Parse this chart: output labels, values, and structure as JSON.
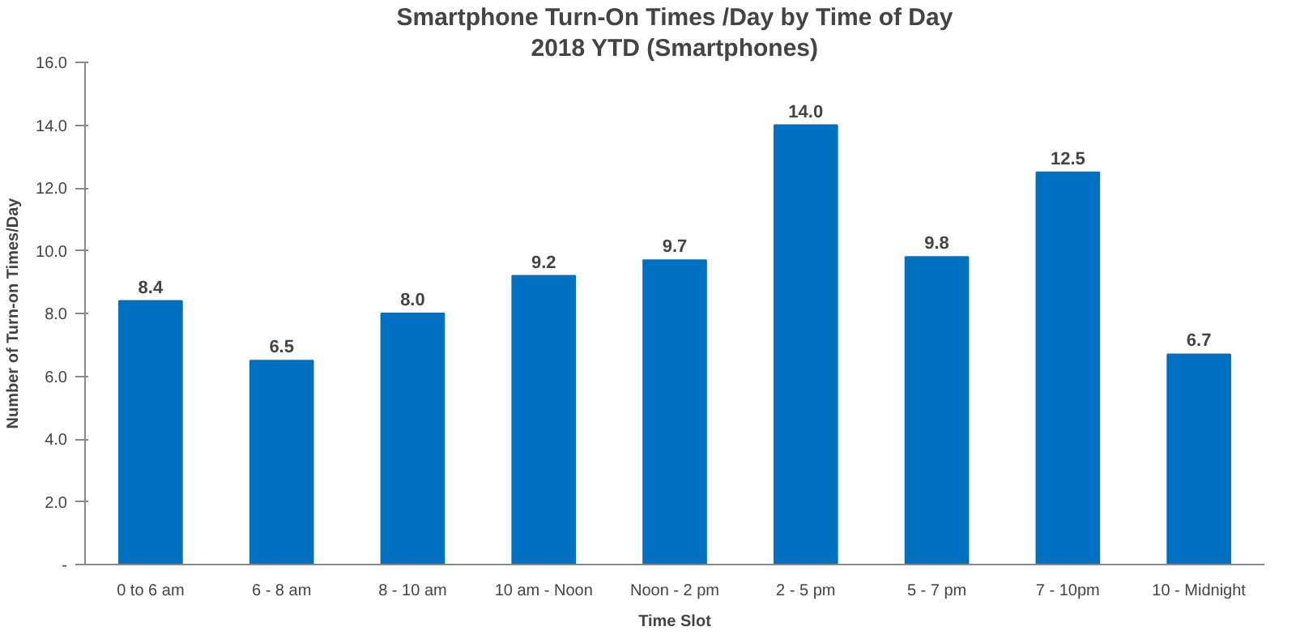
{
  "chart_data": {
    "type": "bar",
    "title": "Smartphone Turn-On Times /Day by Time of Day",
    "subtitle": "2018 YTD (Smartphones)",
    "xlabel": "Time Slot",
    "ylabel": "Number of Turn-on Times/Day",
    "categories": [
      "0 to 6 am",
      "6 - 8 am",
      "8 - 10 am",
      "10 am - Noon",
      "Noon - 2 pm",
      "2 - 5 pm",
      "5 - 7 pm",
      "7 - 10pm",
      "10 - Midnight"
    ],
    "values": [
      8.4,
      6.5,
      8.0,
      9.2,
      9.7,
      14.0,
      9.8,
      12.5,
      6.7
    ],
    "value_labels": [
      "8.4",
      "6.5",
      "8.0",
      "9.2",
      "9.7",
      "14.0",
      "9.8",
      "12.5",
      "6.7"
    ],
    "color": "#0070c0",
    "ylim": [
      0,
      16
    ],
    "yticks": [
      {
        "value": 0,
        "label": "-"
      },
      {
        "value": 2,
        "label": "2.0"
      },
      {
        "value": 4,
        "label": "4.0"
      },
      {
        "value": 6,
        "label": "6.0"
      },
      {
        "value": 8,
        "label": "8.0"
      },
      {
        "value": 10,
        "label": "10.0"
      },
      {
        "value": 12,
        "label": "12.0"
      },
      {
        "value": 14,
        "label": "14.0"
      },
      {
        "value": 16,
        "label": "16.0"
      }
    ],
    "grid": false
  }
}
